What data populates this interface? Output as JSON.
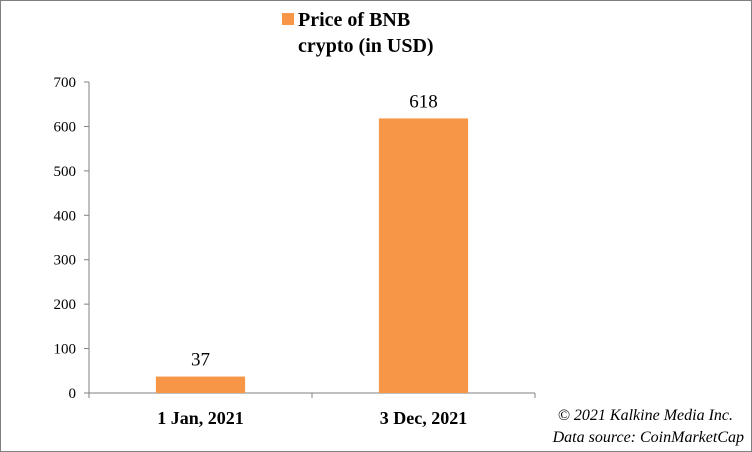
{
  "chart_data": {
    "type": "bar",
    "categories": [
      "1 Jan, 2021",
      "3 Dec, 2021"
    ],
    "series": [
      {
        "name": "Price of BNB crypto (in USD)",
        "values": [
          37,
          618
        ],
        "color": "#F79646"
      }
    ],
    "data_labels": [
      "37",
      "618"
    ],
    "ylim": [
      0,
      700
    ],
    "yticks": [
      0,
      100,
      200,
      300,
      400,
      500,
      600,
      700
    ],
    "grid": false,
    "legend": {
      "placement": "top",
      "lines": [
        "Price of BNB",
        "crypto (in USD)"
      ]
    },
    "xlabel": "",
    "ylabel": ""
  },
  "credits": {
    "line1": "© 2021 Kalkine Media Inc.",
    "line2": "Data source:  CoinMarketCap"
  }
}
